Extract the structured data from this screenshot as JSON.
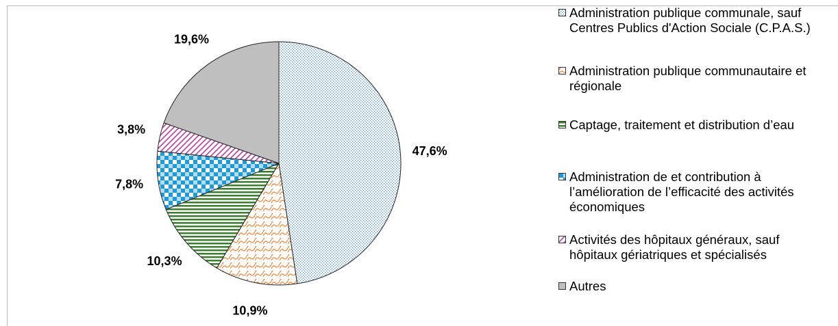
{
  "chart_data": {
    "type": "pie",
    "categories": [
      "Administration publique communale, sauf Centres Publics d'Action Sociale (C.P.A.S.)",
      "Administration publique communautaire et régionale",
      "Captage, traitement et distribution d’eau",
      "Administration de et contribution à l’amélioration de l’efficacité des activités économiques",
      "Activités des hôpitaux généraux, sauf hôpitaux gériatriques et spécialisés",
      "Autres"
    ],
    "values": [
      47.6,
      10.9,
      10.3,
      7.8,
      3.8,
      19.6
    ],
    "value_labels": [
      "47,6%",
      "10,9%",
      "10,3%",
      "7,8%",
      "3,8%",
      "19,6%"
    ],
    "colors": [
      "#4f8fc9",
      "#ed7d31",
      "#3a7d2c",
      "#1f9ad6",
      "#b93ca5",
      "#bfbfbf"
    ]
  }
}
